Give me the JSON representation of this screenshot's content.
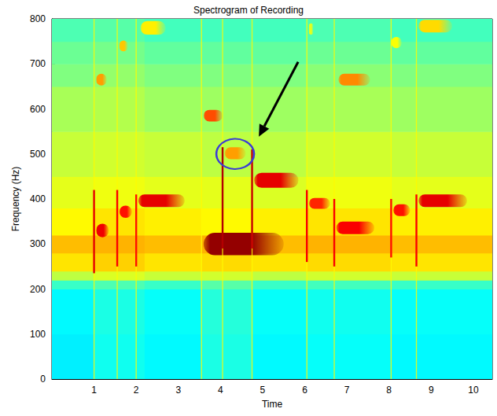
{
  "chart_data": {
    "type": "heatmap",
    "title": "Spectrogram of Recording",
    "xlabel": "Time",
    "ylabel": "Frequency (Hz)",
    "xlim": [
      0,
      10.45
    ],
    "xticks": [
      1,
      2,
      3,
      4,
      5,
      6,
      7,
      8,
      9,
      10
    ],
    "ylim": [
      0,
      800
    ],
    "yticks": [
      0,
      100,
      200,
      300,
      400,
      500,
      600,
      700,
      800
    ],
    "grid": false,
    "clim": [
      0,
      10
    ],
    "background": {
      "x_bins": [
        0,
        1,
        2.2,
        3.55,
        4.75,
        6.05,
        8.05,
        10.45
      ],
      "y_bins": [
        0,
        100,
        200,
        220,
        240,
        280,
        320,
        380,
        450,
        550,
        650,
        700,
        750,
        800
      ],
      "cells": [
        [
          3.6,
          3.9,
          3.7,
          4.0,
          3.7,
          3.8,
          3.7
        ],
        [
          3.7,
          4.0,
          3.8,
          4.1,
          3.8,
          3.9,
          3.8
        ],
        [
          4.3,
          4.5,
          4.3,
          4.6,
          4.3,
          4.4,
          4.3
        ],
        [
          5.6,
          5.9,
          5.7,
          5.8,
          5.6,
          5.8,
          5.7
        ],
        [
          6.5,
          6.7,
          6.5,
          6.6,
          6.5,
          6.6,
          6.5
        ],
        [
          6.9,
          7.0,
          6.9,
          7.0,
          6.9,
          7.0,
          6.9
        ],
        [
          6.3,
          6.5,
          6.4,
          6.3,
          6.4,
          6.5,
          6.4
        ],
        [
          6.0,
          6.1,
          6.0,
          6.0,
          5.9,
          6.1,
          6.0
        ],
        [
          5.7,
          5.8,
          5.7,
          5.6,
          5.6,
          5.8,
          5.7
        ],
        [
          5.4,
          5.5,
          5.3,
          5.3,
          5.3,
          5.4,
          5.3
        ],
        [
          5.0,
          5.2,
          5.0,
          5.0,
          5.0,
          5.1,
          5.0
        ],
        [
          4.8,
          4.9,
          4.7,
          4.7,
          4.7,
          4.8,
          4.7
        ],
        [
          4.5,
          4.6,
          4.4,
          4.4,
          4.4,
          4.5,
          4.4
        ]
      ]
    },
    "tones": [
      {
        "t": [
          1.05,
          1.35
        ],
        "f": [
          315,
          345
        ],
        "level": 8.9
      },
      {
        "t": [
          1.05,
          1.3
        ],
        "f": [
          652,
          678
        ],
        "level": 7.2
      },
      {
        "t": [
          1.6,
          1.9
        ],
        "f": [
          358,
          385
        ],
        "level": 8.6
      },
      {
        "t": [
          1.6,
          1.8
        ],
        "f": [
          728,
          752
        ],
        "level": 6.8
      },
      {
        "t": [
          2.05,
          3.15
        ],
        "f": [
          382,
          410
        ],
        "level": 9.0
      },
      {
        "t": [
          2.1,
          2.7
        ],
        "f": [
          765,
          795
        ],
        "level": 6.4
      },
      {
        "t": [
          3.6,
          5.5
        ],
        "f": [
          275,
          325
        ],
        "level": 9.8
      },
      {
        "t": [
          3.6,
          4.05
        ],
        "f": [
          572,
          598
        ],
        "level": 8.0
      },
      {
        "t": [
          4.1,
          4.6
        ],
        "f": [
          488,
          515
        ],
        "level": 7.2
      },
      {
        "t": [
          4.8,
          5.85
        ],
        "f": [
          425,
          458
        ],
        "level": 9.0
      },
      {
        "t": [
          6.1,
          6.6
        ],
        "f": [
          378,
          402
        ],
        "level": 8.4
      },
      {
        "t": [
          6.1,
          6.2
        ],
        "f": [
          765,
          790
        ],
        "level": 6.0
      },
      {
        "t": [
          6.75,
          7.65
        ],
        "f": [
          322,
          350
        ],
        "level": 8.8
      },
      {
        "t": [
          6.8,
          7.55
        ],
        "f": [
          652,
          678
        ],
        "level": 7.4
      },
      {
        "t": [
          8.1,
          8.5
        ],
        "f": [
          362,
          388
        ],
        "level": 8.6
      },
      {
        "t": [
          8.05,
          8.3
        ],
        "f": [
          735,
          760
        ],
        "level": 6.2
      },
      {
        "t": [
          8.7,
          9.85
        ],
        "f": [
          382,
          410
        ],
        "level": 9.0
      },
      {
        "t": [
          8.7,
          9.5
        ],
        "f": [
          770,
          798
        ],
        "level": 6.6
      }
    ],
    "clicks": [
      {
        "t": 1.0,
        "f": [
          0,
          800
        ],
        "level": 6.3
      },
      {
        "t": 1.55,
        "f": [
          0,
          800
        ],
        "level": 6.3
      },
      {
        "t": 2.0,
        "f": [
          0,
          800
        ],
        "level": 6.3
      },
      {
        "t": 3.55,
        "f": [
          0,
          800
        ],
        "level": 6.3
      },
      {
        "t": 4.05,
        "f": [
          0,
          800
        ],
        "level": 6.3
      },
      {
        "t": 4.75,
        "f": [
          0,
          800
        ],
        "level": 6.3
      },
      {
        "t": 6.05,
        "f": [
          0,
          800
        ],
        "level": 6.3
      },
      {
        "t": 6.7,
        "f": [
          0,
          800
        ],
        "level": 6.3
      },
      {
        "t": 8.05,
        "f": [
          0,
          800
        ],
        "level": 6.3
      },
      {
        "t": 8.65,
        "f": [
          0,
          800
        ],
        "level": 6.3
      },
      {
        "t": 1.0,
        "f": [
          235,
          420
        ],
        "level": 9.0
      },
      {
        "t": 1.55,
        "f": [
          250,
          420
        ],
        "level": 8.8
      },
      {
        "t": 2.0,
        "f": [
          250,
          410
        ],
        "level": 8.6
      },
      {
        "t": 4.05,
        "f": [
          290,
          515
        ],
        "level": 9.5
      },
      {
        "t": 4.75,
        "f": [
          290,
          510
        ],
        "level": 9.3
      },
      {
        "t": 6.05,
        "f": [
          260,
          420
        ],
        "level": 8.8
      },
      {
        "t": 6.7,
        "f": [
          250,
          400
        ],
        "level": 8.8
      },
      {
        "t": 8.05,
        "f": [
          270,
          400
        ],
        "level": 8.6
      },
      {
        "t": 8.65,
        "f": [
          250,
          410
        ],
        "level": 8.8
      }
    ],
    "highlight": {
      "x": 4.35,
      "y": 500
    }
  }
}
